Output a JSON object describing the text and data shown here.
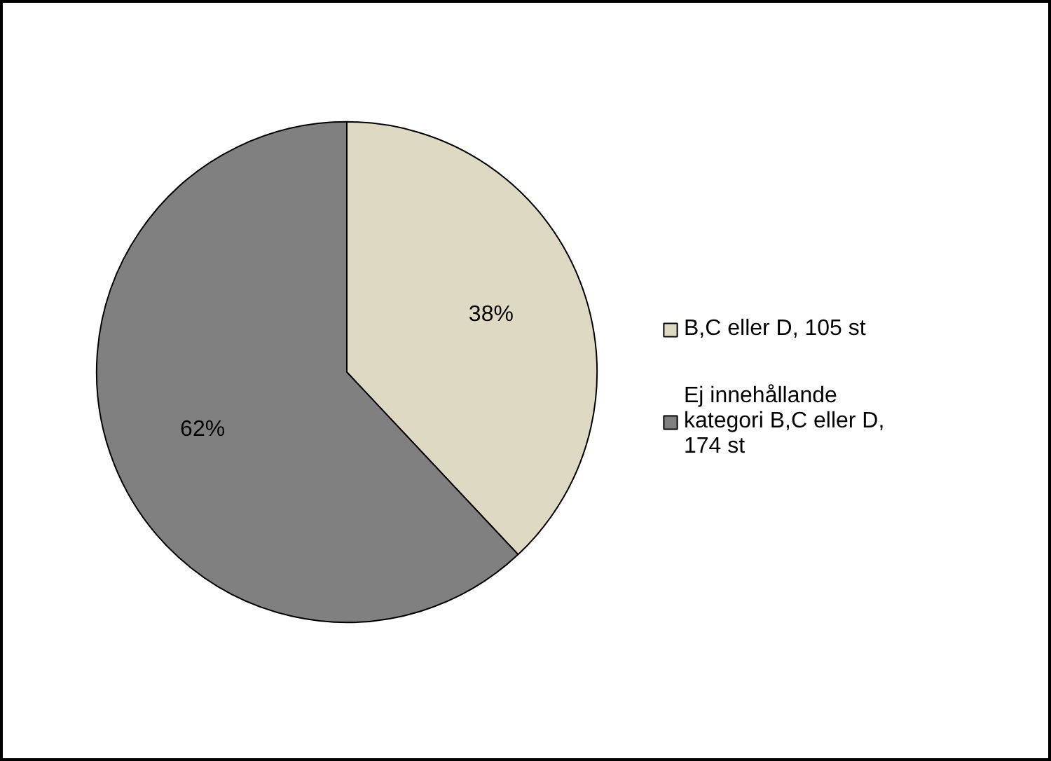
{
  "chart_data": {
    "type": "pie",
    "categories": [
      "B,C eller D, 105 st",
      "Ej innehållande kategori B,C eller D, 174 st"
    ],
    "values": [
      38,
      62
    ],
    "value_labels": [
      "38%",
      "62%"
    ],
    "colors": [
      "#ddd9c3",
      "#808080"
    ],
    "legend": "right"
  }
}
